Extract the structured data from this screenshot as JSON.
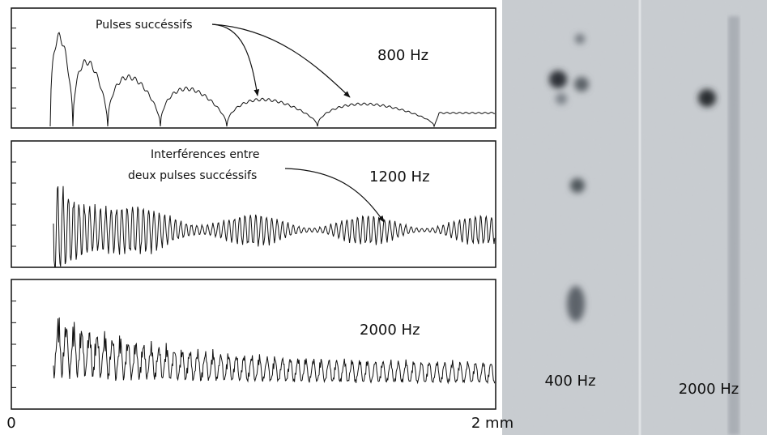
{
  "figure": {
    "panels": [
      {
        "label": "800 Hz",
        "annotation": [
          "Pulses succéssifs"
        ]
      },
      {
        "label": "1200 Hz",
        "annotation": [
          "Interférences entre",
          "deux pulses succéssifs"
        ]
      },
      {
        "label": "2000 Hz"
      }
    ],
    "axis": {
      "start": "0",
      "end": "2 mm"
    },
    "photos": [
      {
        "label": "400 Hz"
      },
      {
        "label": "2000 Hz"
      }
    ]
  }
}
